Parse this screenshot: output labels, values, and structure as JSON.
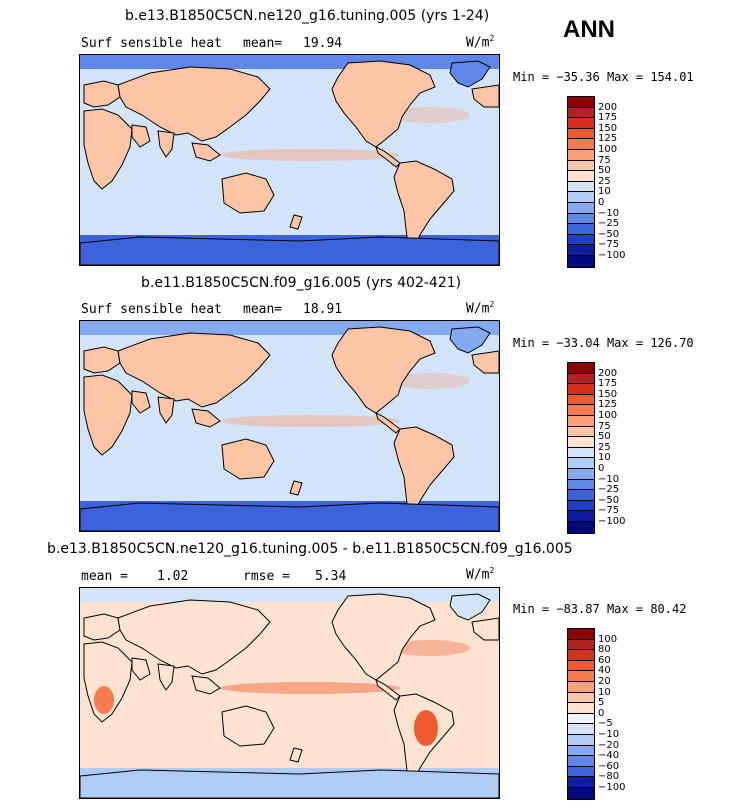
{
  "season": "ANN",
  "chart_data": [
    {
      "type": "heatmap",
      "title": "b.e13.B1850C5CN.ne120_g16.tuning.005 (yrs 1-24)",
      "variable": "Surf sensible heat",
      "stat_label": "mean=",
      "stat_value": "19.94",
      "units": "W/m",
      "units_exp": "2",
      "min_label": "Min =",
      "min_value": "−35.36",
      "max_label": "Max =",
      "max_value": "154.01",
      "levels": [
        "200",
        "175",
        "150",
        "125",
        "100",
        "75",
        "50",
        "25",
        "10",
        "0",
        "−10",
        "−25",
        "−50",
        "−75",
        "−100"
      ],
      "colors": [
        "#8b0000",
        "#b22222",
        "#d7301f",
        "#ef5a30",
        "#f57c50",
        "#f9a07a",
        "#fbc5a6",
        "#fde3d0",
        "#d3e4f8",
        "#b0cdf5",
        "#85aaf0",
        "#5e87e8",
        "#3c63dc",
        "#1f3ec4",
        "#0d1d9e",
        "#000a78"
      ]
    },
    {
      "type": "heatmap",
      "title": "b.e11.B1850C5CN.f09_g16.005 (yrs 402-421)",
      "variable": "Surf sensible heat",
      "stat_label": "mean=",
      "stat_value": "18.91",
      "units": "W/m",
      "units_exp": "2",
      "min_label": "Min =",
      "min_value": "−33.04",
      "max_label": "Max =",
      "max_value": "126.70",
      "levels": [
        "200",
        "175",
        "150",
        "125",
        "100",
        "75",
        "50",
        "25",
        "10",
        "0",
        "−10",
        "−25",
        "−50",
        "−75",
        "−100"
      ],
      "colors": [
        "#8b0000",
        "#b22222",
        "#d7301f",
        "#ef5a30",
        "#f57c50",
        "#f9a07a",
        "#fbc5a6",
        "#fde3d0",
        "#d3e4f8",
        "#b0cdf5",
        "#85aaf0",
        "#5e87e8",
        "#3c63dc",
        "#1f3ec4",
        "#0d1d9e",
        "#000a78"
      ]
    },
    {
      "type": "heatmap",
      "title": "b.e13.B1850C5CN.ne120_g16.tuning.005 - b.e11.B1850C5CN.f09_g16.005",
      "stat_label": "mean =",
      "stat_value": "1.02",
      "stat2_label": "rmse =",
      "stat2_value": "5.34",
      "units": "W/m",
      "units_exp": "2",
      "min_label": "Min =",
      "min_value": "−83.87",
      "max_label": "Max =",
      "max_value": "80.42",
      "levels": [
        "100",
        "80",
        "60",
        "40",
        "20",
        "10",
        "5",
        "0",
        "−5",
        "−10",
        "−20",
        "−40",
        "−60",
        "−80",
        "−100"
      ],
      "colors": [
        "#8b0000",
        "#b22222",
        "#d7301f",
        "#ef5a30",
        "#f57c50",
        "#f9a07a",
        "#fbc5a6",
        "#fde3d0",
        "#eef4fc",
        "#d3e4f8",
        "#b0cdf5",
        "#85aaf0",
        "#5e87e8",
        "#3c63dc",
        "#0d1d9e",
        "#000a78"
      ]
    }
  ]
}
